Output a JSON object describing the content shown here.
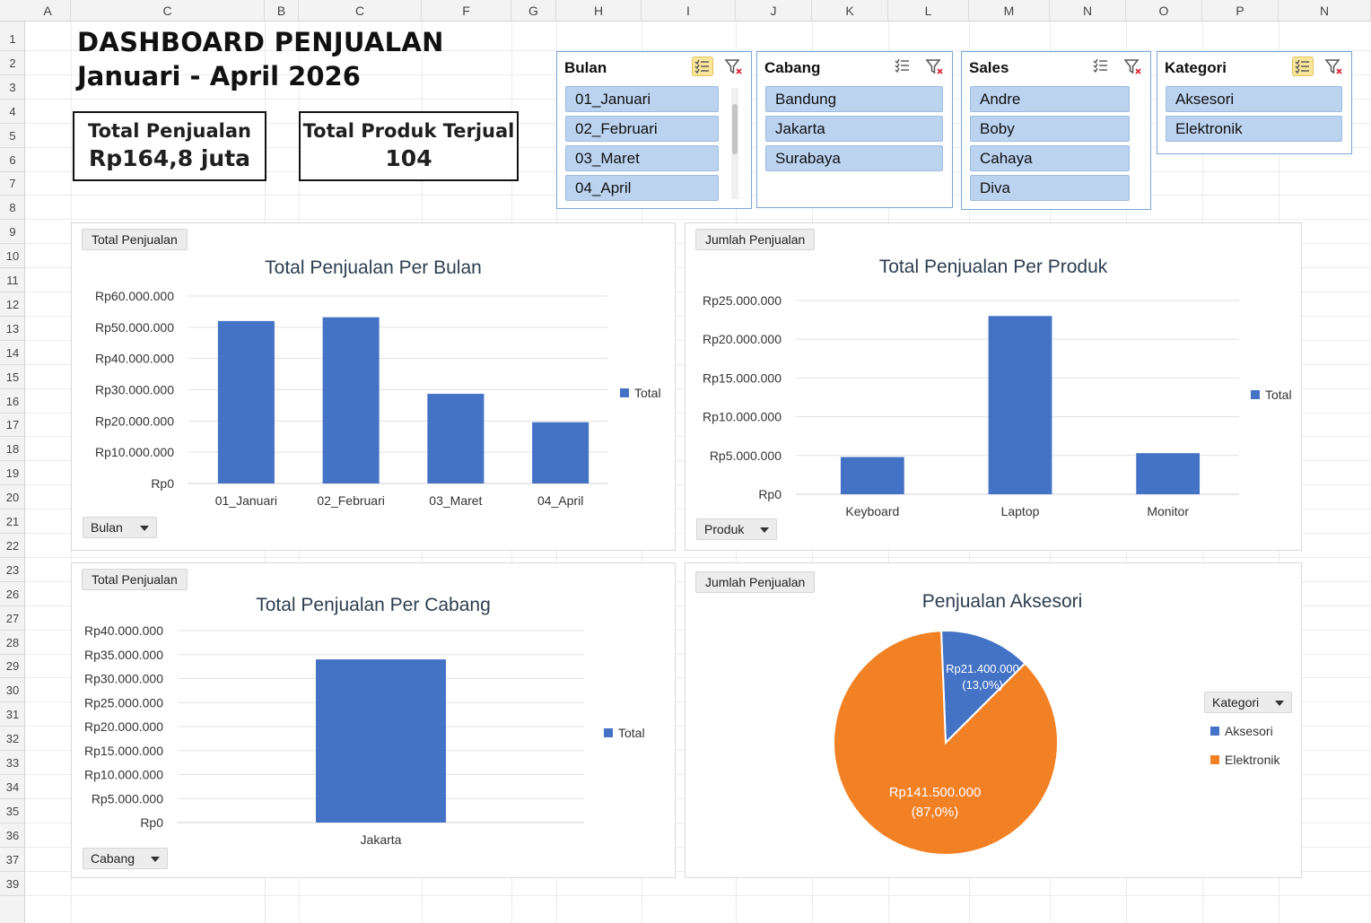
{
  "sheet": {
    "columns": [
      "A",
      "C",
      "B",
      "C",
      "F",
      "G",
      "H",
      "I",
      "J",
      "K",
      "L",
      "M",
      "N",
      "O",
      "P",
      "N"
    ],
    "rows": [
      "1",
      "2",
      "3",
      "4",
      "5",
      "6",
      "7",
      "8",
      "9",
      "10",
      "11",
      "12",
      "13",
      "14",
      "15",
      "16",
      "17",
      "18",
      "19",
      "20",
      "21",
      "22",
      "23",
      "26",
      "27",
      "28",
      "29",
      "30",
      "31",
      "32",
      "33",
      "34",
      "35",
      "36",
      "37",
      "39"
    ]
  },
  "dashboard": {
    "title": "DASHBOARD PENJUALAN",
    "subtitle": "Januari - April 2026",
    "kpi": [
      {
        "label": "Total Penjualan",
        "value": "Rp164,8 juta"
      },
      {
        "label": "Total Produk Terjual",
        "value": "104"
      }
    ]
  },
  "slicers": [
    {
      "title": "Bulan",
      "multiselect_active": true,
      "items": [
        "01_Januari",
        "02_Februari",
        "03_Maret",
        "04_April"
      ]
    },
    {
      "title": "Cabang",
      "multiselect_active": false,
      "items": [
        "Bandung",
        "Jakarta",
        "Surabaya"
      ]
    },
    {
      "title": "Sales",
      "multiselect_active": false,
      "items": [
        "Andre",
        "Boby",
        "Cahaya",
        "Diva"
      ]
    },
    {
      "title": "Kategori",
      "multiselect_active": true,
      "items": [
        "Aksesori",
        "Elektronik"
      ]
    }
  ],
  "colors": {
    "bar": "#4472c4",
    "pie_aksesori": "#4472c4",
    "pie_elektronik": "#f28125",
    "slicer_item": "#bcd3f0"
  },
  "chart_data": [
    {
      "type": "bar",
      "tag": "Total Penjualan",
      "title": "Total Penjualan Per Bulan",
      "field_button": "Bulan",
      "categories": [
        "01_Januari",
        "02_Februari",
        "03_Maret",
        "04_April"
      ],
      "series": [
        {
          "name": "Total",
          "values": [
            52000000,
            53200000,
            28700000,
            19600000
          ]
        }
      ],
      "ylim": [
        0,
        60000000
      ],
      "yticks": [
        "Rp0",
        "Rp10.000.000",
        "Rp20.000.000",
        "Rp30.000.000",
        "Rp40.000.000",
        "Rp50.000.000",
        "Rp60.000.000"
      ],
      "grid": true,
      "legend": "right"
    },
    {
      "type": "bar",
      "tag": "Jumlah Penjualan",
      "title": "Total Penjualan Per Produk",
      "field_button": "Produk",
      "categories": [
        "Keyboard",
        "Laptop",
        "Monitor"
      ],
      "series": [
        {
          "name": "Total",
          "values": [
            4800000,
            23000000,
            5300000
          ]
        }
      ],
      "ylim": [
        0,
        25000000
      ],
      "yticks": [
        "Rp0",
        "Rp5.000.000",
        "Rp10.000.000",
        "Rp15.000.000",
        "Rp20.000.000",
        "Rp25.000.000"
      ],
      "grid": true,
      "legend": "right"
    },
    {
      "type": "bar",
      "tag": "Total Penjualan",
      "title": "Total Penjualan Per Cabang",
      "field_button": "Cabang",
      "categories": [
        "Jakarta"
      ],
      "series": [
        {
          "name": "Total",
          "values": [
            34000000
          ]
        }
      ],
      "ylim": [
        0,
        40000000
      ],
      "yticks": [
        "Rp0",
        "Rp5.000.000",
        "Rp10.000.000",
        "Rp15.000.000",
        "Rp20.000.000",
        "Rp25.000.000",
        "Rp30.000.000",
        "Rp35.000.000",
        "Rp40.000.000"
      ],
      "grid": true,
      "legend": "right"
    },
    {
      "type": "pie",
      "tag": "Jumlah Penjualan",
      "title": "Penjualan Aksesori",
      "field_button": "Kategori",
      "slices": [
        {
          "name": "Aksesori",
          "value": 21400000,
          "label": "Rp21.400.000",
          "pct": "(13,0%)"
        },
        {
          "name": "Elektronik",
          "value": 141500000,
          "label": "Rp141.500.000",
          "pct": "(87,0%)"
        }
      ],
      "legend": "right"
    }
  ]
}
